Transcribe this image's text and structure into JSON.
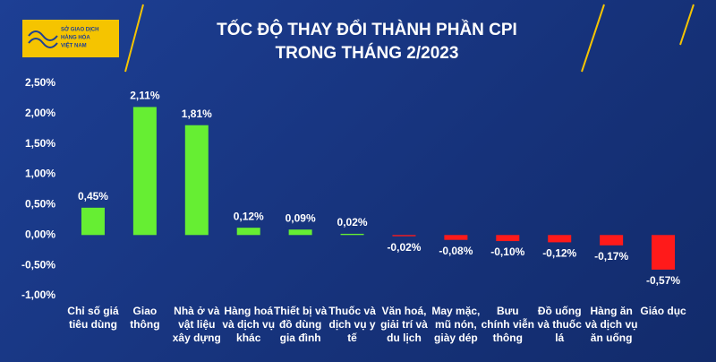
{
  "logo": [
    "SỞ GIAO DỊCH",
    "HÀNG HÓA",
    "VIỆT NAM"
  ],
  "chart_data": {
    "type": "bar",
    "title": [
      "TỐC ĐỘ THAY ĐỔI THÀNH PHẦN CPI",
      "TRONG THÁNG 2/2023"
    ],
    "categories": [
      "Chỉ số giá tiêu dùng",
      "Giao thông",
      "Nhà ở và vật liệu xây dựng",
      "Hàng hoá và dịch vụ khác",
      "Thiết bị và đồ dùng gia đình",
      "Thuốc và dịch vụ y tế",
      "Văn hoá, giải trí và du lịch",
      "May mặc, mũ nón, giày dép",
      "Bưu chính viễn thông",
      "Đồ uống và thuốc lá",
      "Hàng ăn và dịch vụ ăn uống",
      "Giáo dục"
    ],
    "values": [
      0.45,
      2.11,
      1.81,
      0.12,
      0.09,
      0.02,
      -0.02,
      -0.08,
      -0.1,
      -0.12,
      -0.17,
      -0.57
    ],
    "value_labels": [
      "0,45%",
      "2,11%",
      "1,81%",
      "0,12%",
      "0,09%",
      "0,02%",
      "-0,02%",
      "-0,08%",
      "-0,10%",
      "-0,12%",
      "-0,17%",
      "-0,57%"
    ],
    "positive_color": "#66ee33",
    "negative_color": "#ff1a1a",
    "ylim": [
      -1,
      2.5
    ],
    "yticks": [
      {
        "value": -1,
        "label": "-1,00%"
      },
      {
        "value": -0.5,
        "label": "-0,50%"
      },
      {
        "value": 0,
        "label": "0,00%"
      },
      {
        "value": 0.5,
        "label": "0,50%"
      },
      {
        "value": 1,
        "label": "1,00%"
      },
      {
        "value": 1.5,
        "label": "1,50%"
      },
      {
        "value": 2,
        "label": "2,00%"
      },
      {
        "value": 2.5,
        "label": "2,50%"
      }
    ]
  }
}
